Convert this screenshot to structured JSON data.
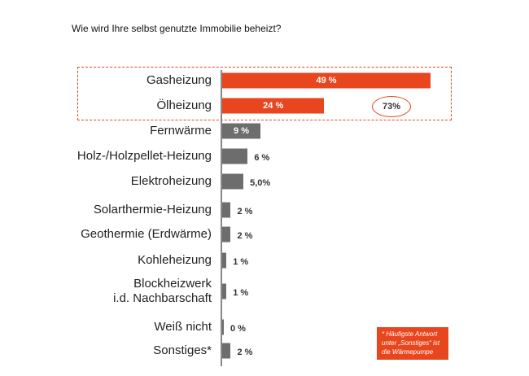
{
  "chart_data": {
    "type": "bar",
    "orientation": "horizontal",
    "title": "Wie wird Ihre selbst genutzte Immobilie beheizt?",
    "categories": [
      "Gasheizung",
      "Ölheizung",
      "Fernwärme",
      "Holz-/Holzpellet-Heizung",
      "Elektroheizung",
      "Solarthermie-Heizung",
      "Geothermie (Erdwärme)",
      "Kohleheizung",
      "Blockheizwerk\ni.d. Nachbarschaft",
      "Weiß nicht",
      "Sonstiges*"
    ],
    "values": [
      49,
      24,
      9,
      6,
      5,
      2,
      2,
      1,
      1,
      0,
      2
    ],
    "value_labels": [
      "49 %",
      "24 %",
      "9 %",
      "6 %",
      "5,0%",
      "2 %",
      "2 %",
      "1 %",
      "1 %",
      "0 %",
      "2 %"
    ],
    "colors": [
      "#e8461e",
      "#e8461e",
      "#6d6d6d",
      "#6d6d6d",
      "#6d6d6d",
      "#6d6d6d",
      "#6d6d6d",
      "#6d6d6d",
      "#6d6d6d",
      "#6d6d6d",
      "#6d6d6d"
    ],
    "annotation": "73%",
    "footnote": "* Häufigste Antwort\nunter „Sonstiges“ ist\ndie Wärmepumpe"
  }
}
